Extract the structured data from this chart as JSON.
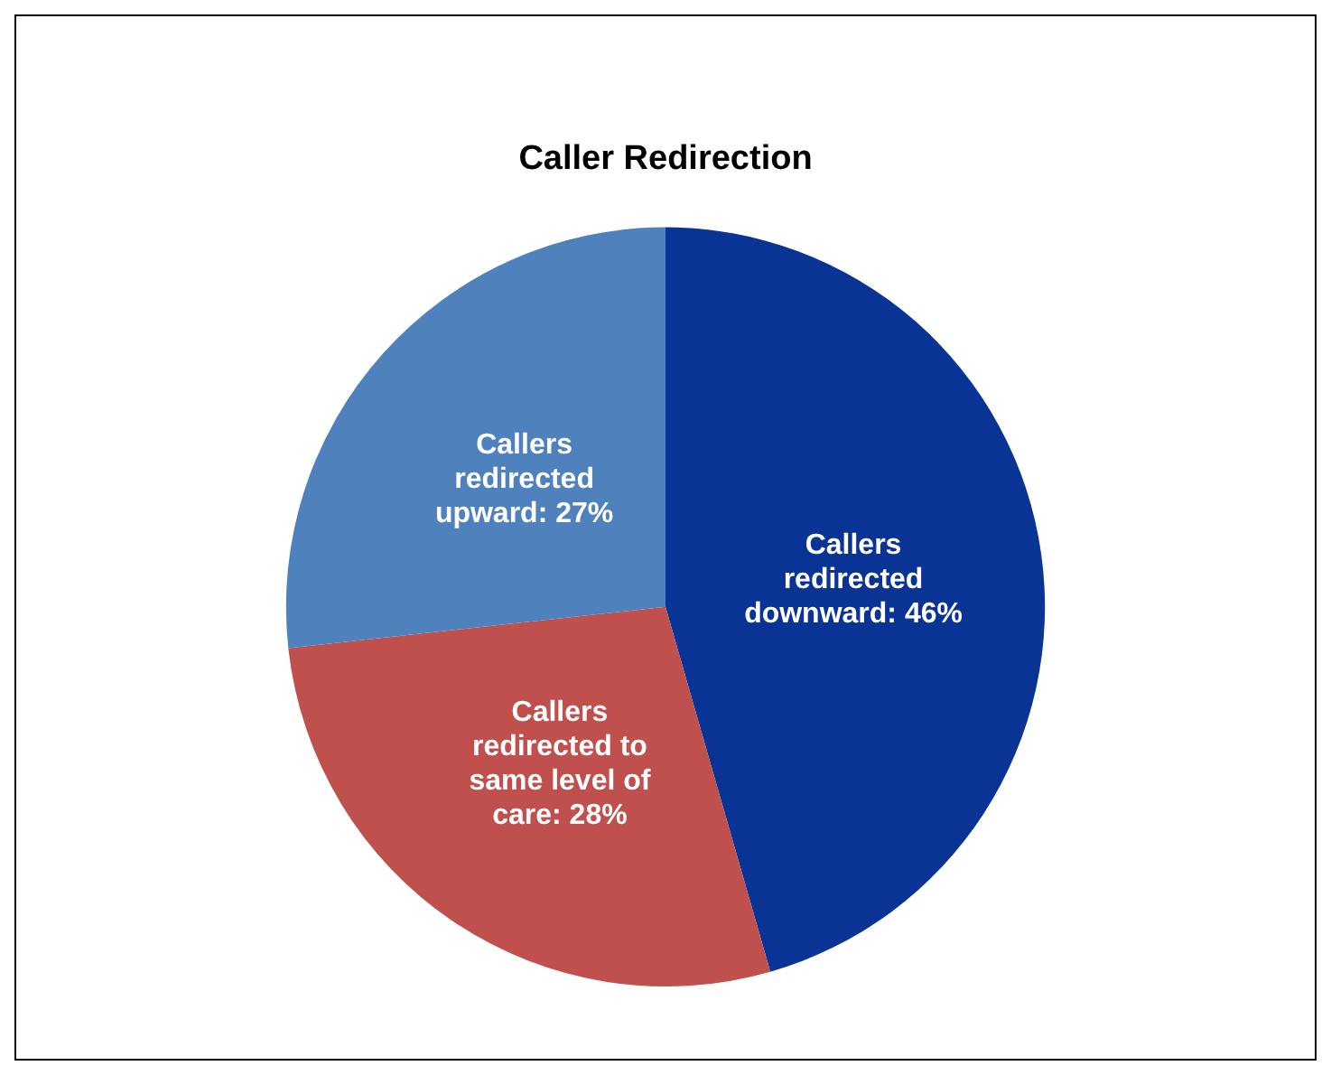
{
  "chart_data": {
    "type": "pie",
    "title": "Caller Redirection",
    "categories": [
      "Callers redirected downward",
      "Callers redirected to same level of care",
      "Callers redirected upward"
    ],
    "values": [
      46,
      28,
      27
    ],
    "value_labels": [
      "46%",
      "28%",
      "27%"
    ],
    "colors": [
      "#0a3396",
      "#c0504d",
      "#4f81bd"
    ],
    "legend": false
  }
}
